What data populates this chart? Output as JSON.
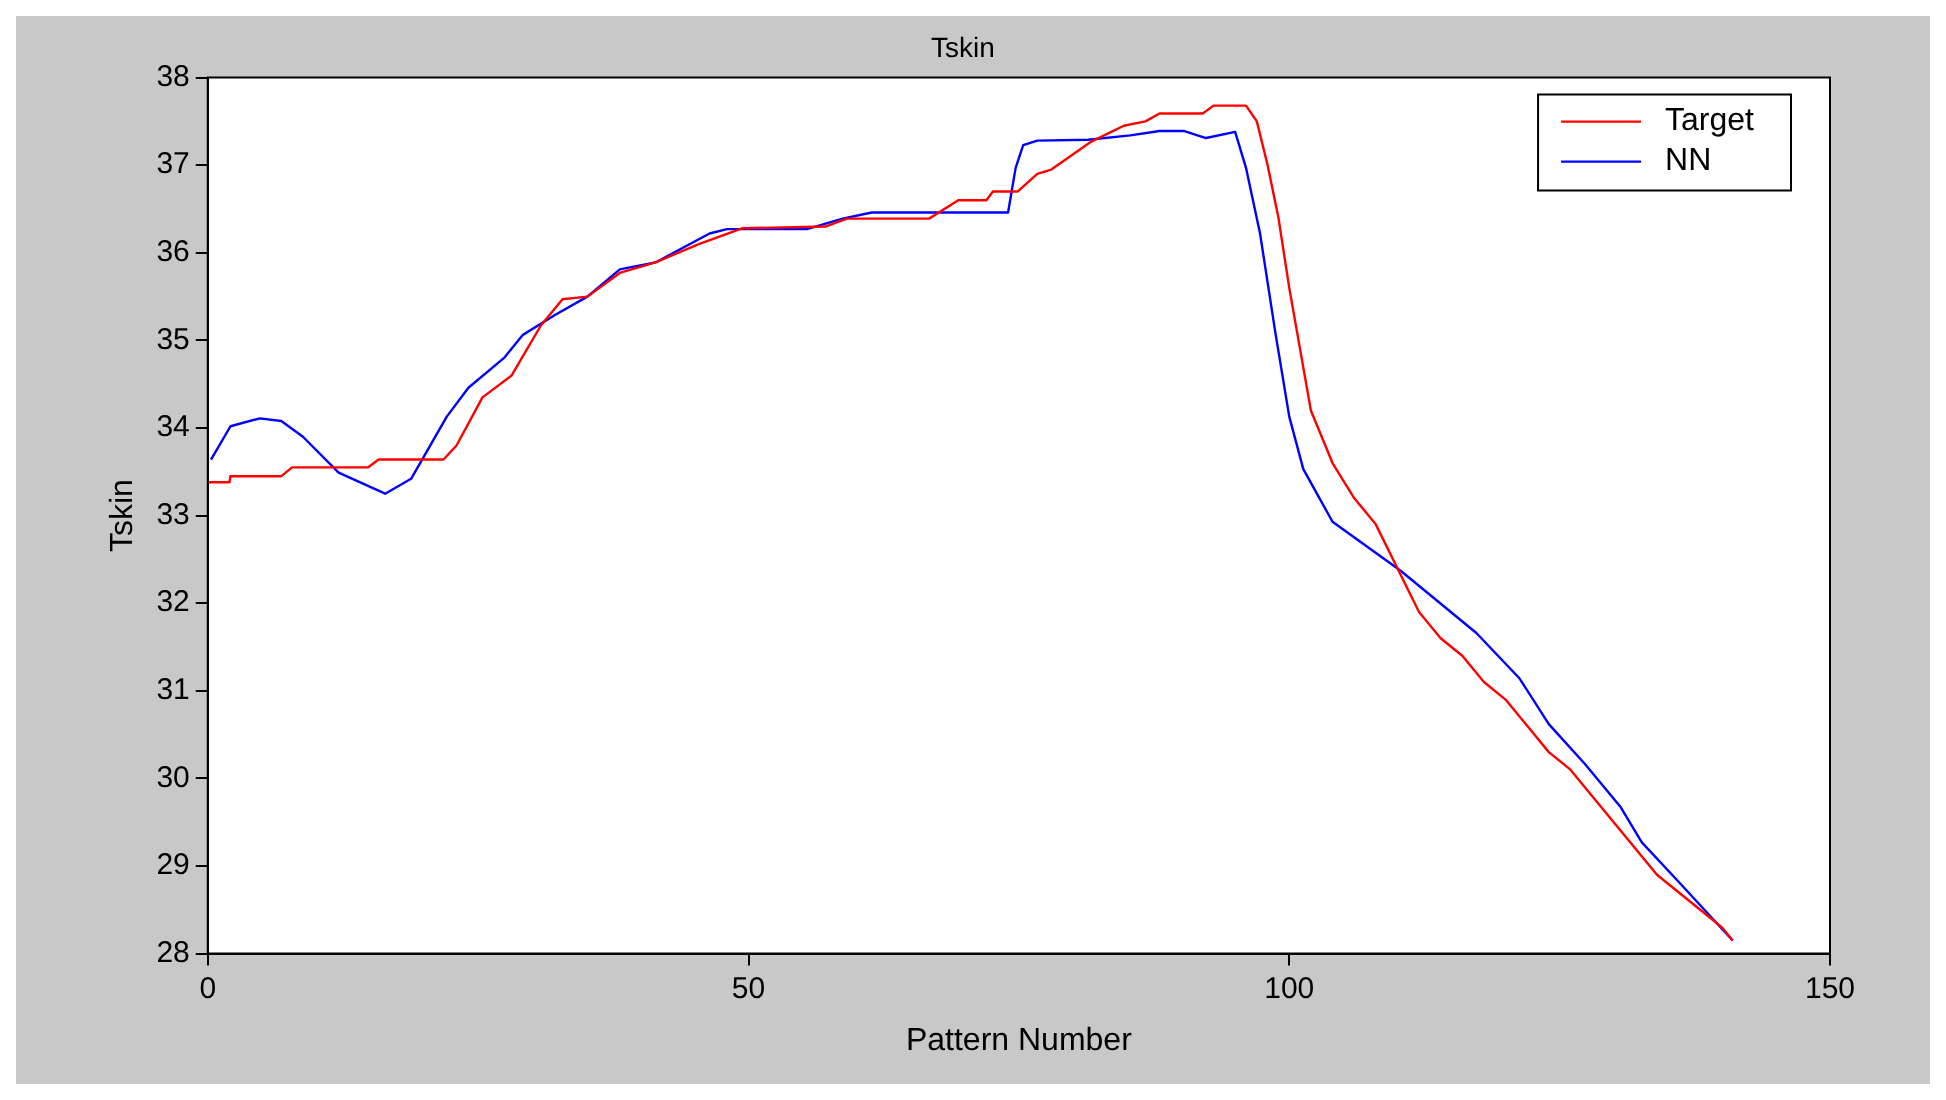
{
  "chart_data": {
    "type": "line",
    "title": "Tskin",
    "xlabel": "Pattern Number",
    "ylabel": "Tskin",
    "xlim": [
      0,
      150
    ],
    "xticks": [
      0,
      50,
      100,
      150
    ],
    "ylim": [
      28,
      38
    ],
    "yticks": [
      28,
      29,
      30,
      31,
      32,
      33,
      34,
      35,
      36,
      37,
      38
    ],
    "grid": false,
    "legend": "top right",
    "marker": "none",
    "line_style": "solid",
    "series": [
      {
        "name": "Target",
        "color": "#ff0000",
        "x": [
          0,
          2,
          2.1,
          6.8,
          7.8,
          14.8,
          15.8,
          21.8,
          23,
          25.4,
          28.1,
          30.8,
          32.8,
          35.1,
          38.1,
          41.4,
          45.4,
          49.4,
          57.1,
          59.1,
          66.7,
          69.4,
          72,
          72.6,
          74.9,
          76.7,
          78,
          81.7,
          84.7,
          86.7,
          88,
          92,
          93,
          96,
          97,
          98,
          99,
          100,
          101,
          102,
          104,
          106,
          108,
          110,
          112,
          114,
          116,
          118,
          120,
          122,
          124,
          126,
          128,
          130,
          132,
          134,
          136,
          138,
          140,
          141
        ],
        "values": [
          33.38,
          33.38,
          33.45,
          33.45,
          33.55,
          33.55,
          33.64,
          33.64,
          33.8,
          34.35,
          34.6,
          35.17,
          35.47,
          35.5,
          35.77,
          35.89,
          36.1,
          36.28,
          36.3,
          36.39,
          36.39,
          36.6,
          36.6,
          36.7,
          36.7,
          36.9,
          36.95,
          37.27,
          37.45,
          37.5,
          37.59,
          37.59,
          37.68,
          37.68,
          37.5,
          37.0,
          36.4,
          35.6,
          34.9,
          34.2,
          33.6,
          33.2,
          32.9,
          32.4,
          31.9,
          31.6,
          31.4,
          31.1,
          30.9,
          30.6,
          30.3,
          30.1,
          29.8,
          29.5,
          29.2,
          28.9,
          28.7,
          28.5,
          28.3,
          28.15
        ]
      },
      {
        "name": "NN",
        "color": "#0000ff",
        "x": [
          0.3,
          2.1,
          4.8,
          6.8,
          8.8,
          12.1,
          16.4,
          18.8,
          22.1,
          24.1,
          27.4,
          29.1,
          32.1,
          35.1,
          38.1,
          41.4,
          46.4,
          48,
          55.4,
          58.7,
          61.4,
          74,
          74.7,
          75.4,
          76.7,
          81.4,
          85.3,
          88,
          90.3,
          92.3,
          95,
          96,
          97.3,
          98.7,
          100,
          101.3,
          104,
          110.3,
          117.3,
          121.3,
          124,
          127.3,
          130.6,
          132.6,
          136,
          141
        ],
        "values": [
          33.64,
          34.02,
          34.11,
          34.08,
          33.9,
          33.49,
          33.25,
          33.42,
          34.13,
          34.46,
          34.8,
          35.06,
          35.29,
          35.5,
          35.81,
          35.89,
          36.22,
          36.27,
          36.27,
          36.39,
          36.46,
          36.46,
          36.97,
          37.23,
          37.28,
          37.29,
          37.34,
          37.39,
          37.39,
          37.31,
          37.38,
          36.97,
          36.22,
          35.1,
          34.13,
          33.53,
          32.93,
          32.37,
          31.66,
          31.14,
          30.62,
          30.17,
          29.68,
          29.27,
          28.82,
          28.15
        ]
      }
    ]
  }
}
